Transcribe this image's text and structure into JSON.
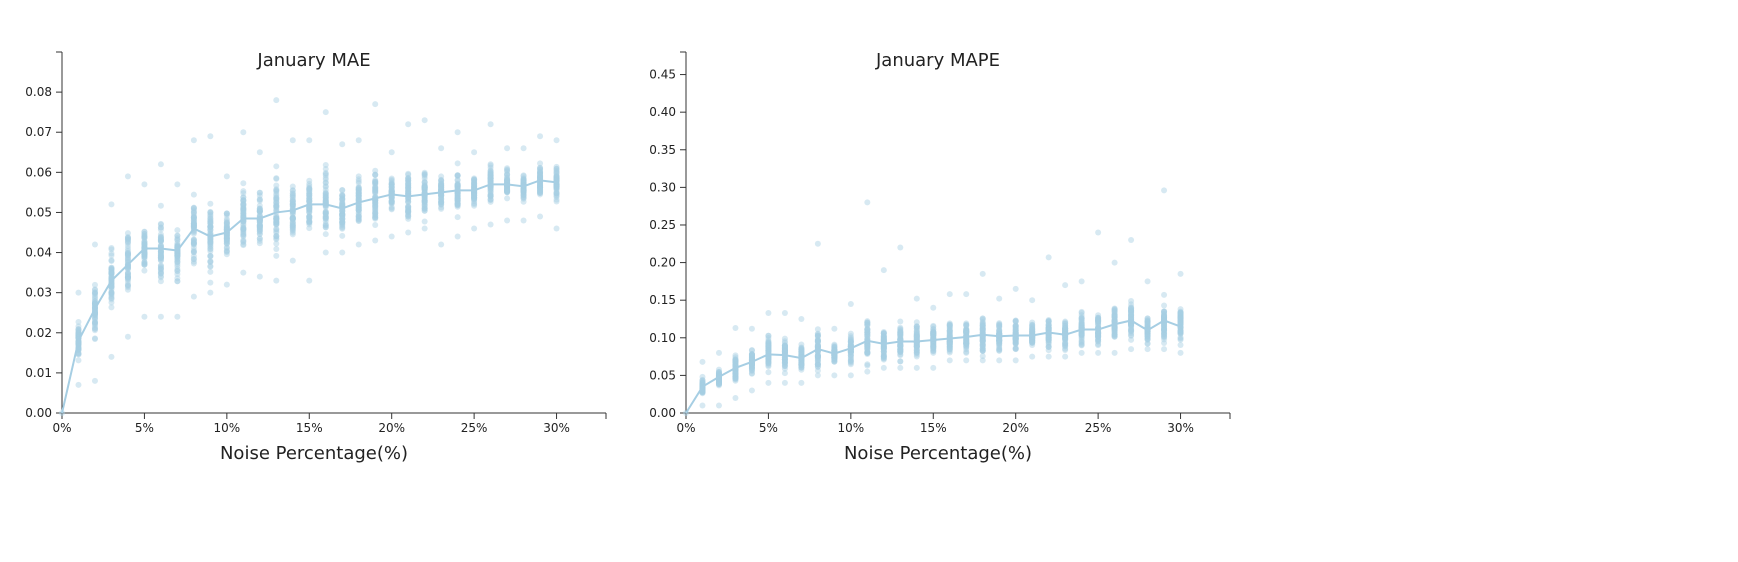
{
  "colors": {
    "marker": "#a6cee3",
    "mean_line": "#a6cee3",
    "axis": "#333333"
  },
  "chart_data": [
    {
      "type": "scatter",
      "title": "January MAE",
      "xlabel": "Noise Percentage(%)",
      "ylabel": "",
      "xlim": [
        0,
        33
      ],
      "ylim": [
        0,
        0.09
      ],
      "x_ticks": [
        0,
        5,
        10,
        15,
        20,
        25,
        30
      ],
      "x_tick_labels": [
        "0%",
        "5%",
        "10%",
        "15%",
        "20%",
        "25%",
        "30%"
      ],
      "y_ticks": [
        0,
        0.01,
        0.02,
        0.03,
        0.04,
        0.05,
        0.06,
        0.07,
        0.08
      ],
      "y_tick_labels": [
        "0.00",
        "0.01",
        "0.02",
        "0.03",
        "0.04",
        "0.05",
        "0.06",
        "0.07",
        "0.08"
      ],
      "points_per_level": 60,
      "series": [
        {
          "name": "",
          "x": [
            0,
            1,
            2,
            3,
            4,
            5,
            6,
            7,
            8,
            9,
            10,
            11,
            12,
            13,
            14,
            15,
            16,
            17,
            18,
            19,
            20,
            21,
            22,
            23,
            24,
            25,
            26,
            27,
            28,
            29,
            30
          ],
          "mean": [
            0,
            0.018,
            0.026,
            0.033,
            0.037,
            0.041,
            0.041,
            0.0405,
            0.046,
            0.044,
            0.045,
            0.0485,
            0.0485,
            0.05,
            0.0505,
            0.052,
            0.052,
            0.051,
            0.0525,
            0.0535,
            0.0545,
            0.054,
            0.0545,
            0.055,
            0.0555,
            0.0555,
            0.057,
            0.057,
            0.0565,
            0.058,
            0.0575
          ],
          "min": [
            0,
            0.007,
            0.008,
            0.014,
            0.019,
            0.024,
            0.024,
            0.024,
            0.029,
            0.03,
            0.032,
            0.035,
            0.034,
            0.033,
            0.038,
            0.033,
            0.04,
            0.04,
            0.042,
            0.043,
            0.044,
            0.045,
            0.046,
            0.042,
            0.044,
            0.046,
            0.047,
            0.048,
            0.048,
            0.049,
            0.046
          ],
          "max": [
            0,
            0.03,
            0.042,
            0.052,
            0.059,
            0.057,
            0.062,
            0.057,
            0.068,
            0.069,
            0.059,
            0.07,
            0.065,
            0.078,
            0.068,
            0.068,
            0.075,
            0.067,
            0.068,
            0.077,
            0.065,
            0.072,
            0.073,
            0.066,
            0.07,
            0.065,
            0.072,
            0.066,
            0.066,
            0.069,
            0.068
          ]
        }
      ]
    },
    {
      "type": "scatter",
      "title": "January MAPE",
      "xlabel": "Noise Percentage(%)",
      "ylabel": "",
      "xlim": [
        0,
        33
      ],
      "ylim": [
        0,
        0.48
      ],
      "x_ticks": [
        0,
        5,
        10,
        15,
        20,
        25,
        30
      ],
      "x_tick_labels": [
        "0%",
        "5%",
        "10%",
        "15%",
        "20%",
        "25%",
        "30%"
      ],
      "y_ticks": [
        0,
        0.05,
        0.1,
        0.15,
        0.2,
        0.25,
        0.3,
        0.35,
        0.4,
        0.45
      ],
      "y_tick_labels": [
        "0.00",
        "0.05",
        "0.10",
        "0.15",
        "0.20",
        "0.25",
        "0.30",
        "0.35",
        "0.40",
        "0.45"
      ],
      "points_per_level": 60,
      "series": [
        {
          "name": "",
          "x": [
            0,
            1,
            2,
            3,
            4,
            5,
            6,
            7,
            8,
            9,
            10,
            11,
            12,
            13,
            14,
            15,
            16,
            17,
            18,
            19,
            20,
            21,
            22,
            23,
            24,
            25,
            26,
            27,
            28,
            29,
            30
          ],
          "mean": [
            0,
            0.035,
            0.048,
            0.06,
            0.068,
            0.078,
            0.077,
            0.073,
            0.085,
            0.079,
            0.086,
            0.096,
            0.092,
            0.095,
            0.095,
            0.097,
            0.099,
            0.101,
            0.104,
            0.102,
            0.103,
            0.103,
            0.107,
            0.104,
            0.111,
            0.111,
            0.118,
            0.123,
            0.11,
            0.123,
            0.115
          ],
          "min": [
            0,
            0.01,
            0.01,
            0.02,
            0.03,
            0.04,
            0.04,
            0.04,
            0.05,
            0.05,
            0.05,
            0.055,
            0.06,
            0.06,
            0.06,
            0.06,
            0.07,
            0.07,
            0.07,
            0.07,
            0.07,
            0.075,
            0.075,
            0.075,
            0.08,
            0.08,
            0.08,
            0.085,
            0.085,
            0.085,
            0.08
          ],
          "max": [
            0,
            0.068,
            0.08,
            0.113,
            0.112,
            0.133,
            0.133,
            0.125,
            0.225,
            0.112,
            0.145,
            0.28,
            0.19,
            0.22,
            0.152,
            0.14,
            0.158,
            0.158,
            0.185,
            0.152,
            0.165,
            0.15,
            0.207,
            0.17,
            0.175,
            0.24,
            0.2,
            0.23,
            0.175,
            0.296,
            0.185
          ]
        }
      ]
    }
  ]
}
